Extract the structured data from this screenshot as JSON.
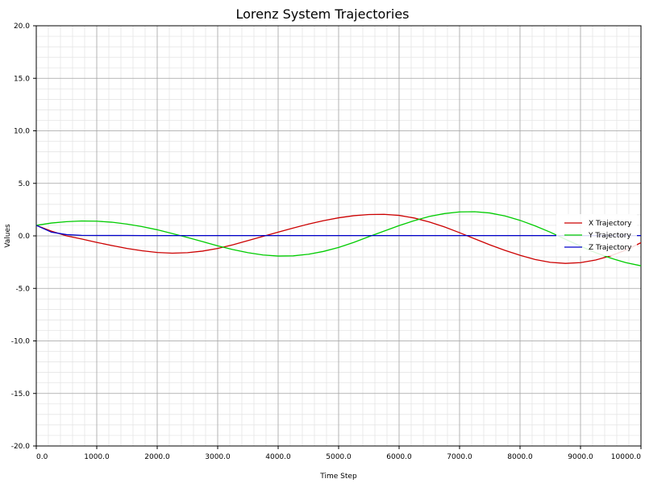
{
  "chart_data": {
    "type": "line",
    "title": "Lorenz System Trajectories",
    "xlabel": "Time Step",
    "ylabel": "Values",
    "xlim": [
      0,
      10000
    ],
    "ylim": [
      -20,
      20
    ],
    "grid": true,
    "legend_position": "right",
    "x_ticks": [
      "0.0",
      "1000.0",
      "2000.0",
      "3000.0",
      "4000.0",
      "5000.0",
      "6000.0",
      "7000.0",
      "8000.0",
      "9000.0",
      "10000.0"
    ],
    "y_ticks": [
      "20.0",
      "15.0",
      "10.0",
      "5.0",
      "0.0",
      "-5.0",
      "-10.0",
      "-15.0",
      "-20.0"
    ],
    "x": [
      0,
      250,
      500,
      750,
      1000,
      1250,
      1500,
      1750,
      2000,
      2250,
      2500,
      2750,
      3000,
      3250,
      3500,
      3750,
      4000,
      4250,
      4500,
      4750,
      5000,
      5250,
      5500,
      5750,
      6000,
      6250,
      6500,
      6750,
      7000,
      7250,
      7500,
      7750,
      8000,
      8250,
      8500,
      8750,
      9000,
      9250,
      9500,
      9750,
      10000
    ],
    "series": [
      {
        "name": "X Trajectory",
        "color": "#cc0000",
        "values": [
          1.0,
          0.45,
          0.0,
          -0.3,
          -0.62,
          -0.92,
          -1.2,
          -1.42,
          -1.58,
          -1.65,
          -1.6,
          -1.45,
          -1.2,
          -0.85,
          -0.45,
          -0.05,
          0.35,
          0.75,
          1.12,
          1.45,
          1.72,
          1.92,
          2.03,
          2.05,
          1.95,
          1.7,
          1.32,
          0.85,
          0.3,
          -0.28,
          -0.85,
          -1.38,
          -1.85,
          -2.25,
          -2.52,
          -2.62,
          -2.55,
          -2.3,
          -1.9,
          -1.35,
          -0.65
        ]
      },
      {
        "name": "Y Trajectory",
        "color": "#00cc00",
        "values": [
          1.0,
          1.22,
          1.35,
          1.42,
          1.4,
          1.3,
          1.12,
          0.88,
          0.58,
          0.22,
          -0.15,
          -0.55,
          -0.95,
          -1.3,
          -1.6,
          -1.82,
          -1.92,
          -1.9,
          -1.75,
          -1.48,
          -1.1,
          -0.62,
          -0.08,
          0.45,
          0.98,
          1.45,
          1.85,
          2.12,
          2.28,
          2.3,
          2.18,
          1.9,
          1.48,
          0.95,
          0.35,
          -0.32,
          -0.98,
          -1.6,
          -2.12,
          -2.55,
          -2.85
        ]
      },
      {
        "name": "Z Trajectory",
        "color": "#0000cc",
        "values": [
          1.0,
          0.35,
          0.12,
          0.05,
          0.04,
          0.04,
          0.04,
          0.03,
          0.03,
          0.03,
          0.03,
          0.03,
          0.03,
          0.03,
          0.03,
          0.03,
          0.03,
          0.03,
          0.03,
          0.03,
          0.03,
          0.03,
          0.03,
          0.03,
          0.03,
          0.03,
          0.03,
          0.03,
          0.03,
          0.03,
          0.03,
          0.03,
          0.03,
          0.03,
          0.03,
          0.03,
          0.03,
          0.03,
          0.03,
          0.03,
          0.03
        ]
      }
    ]
  }
}
